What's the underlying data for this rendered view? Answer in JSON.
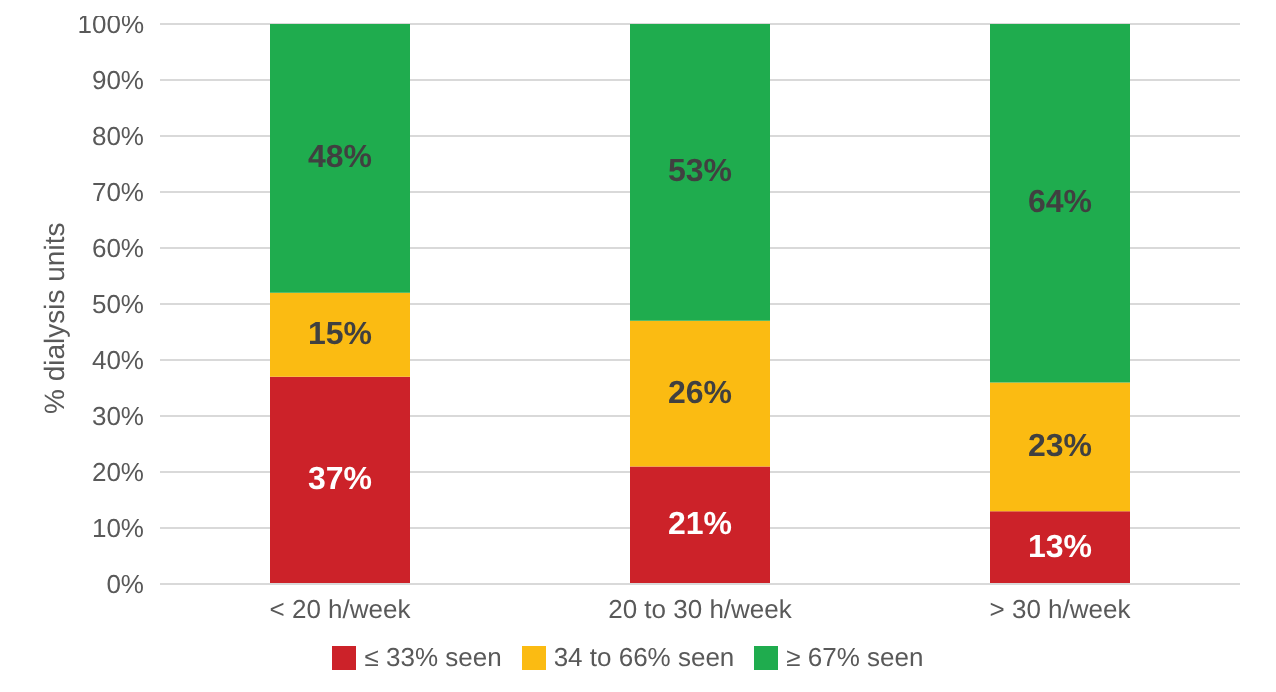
{
  "chart_data": {
    "type": "bar",
    "stacked": true,
    "ylabel": "% dialysis units",
    "categories": [
      "< 20 h/week",
      "20 to 30 h/week",
      "> 30 h/week"
    ],
    "series": [
      {
        "name": "≤ 33% seen",
        "color": "#cc2229",
        "values": [
          37,
          21,
          13
        ],
        "value_labels": [
          "37%",
          "21%",
          "13%"
        ]
      },
      {
        "name": "34 to 66% seen",
        "color": "#fbbb12",
        "values": [
          15,
          26,
          23
        ],
        "value_labels": [
          "15%",
          "26%",
          "23%"
        ]
      },
      {
        "name": "≥ 67% seen",
        "color": "#1fac4e",
        "values": [
          48,
          53,
          64
        ],
        "value_labels": [
          "48%",
          "53%",
          "64%"
        ]
      }
    ],
    "ylim": [
      0,
      100
    ],
    "yticks": [
      {
        "value": 0,
        "label": "0%"
      },
      {
        "value": 10,
        "label": "10%"
      },
      {
        "value": 20,
        "label": "20%"
      },
      {
        "value": 30,
        "label": "30%"
      },
      {
        "value": 40,
        "label": "40%"
      },
      {
        "value": 50,
        "label": "50%"
      },
      {
        "value": 60,
        "label": "60%"
      },
      {
        "value": 70,
        "label": "70%"
      },
      {
        "value": 80,
        "label": "80%"
      },
      {
        "value": 90,
        "label": "90%"
      },
      {
        "value": 100,
        "label": "100%"
      }
    ],
    "grid": "y",
    "legend": "bottom"
  }
}
